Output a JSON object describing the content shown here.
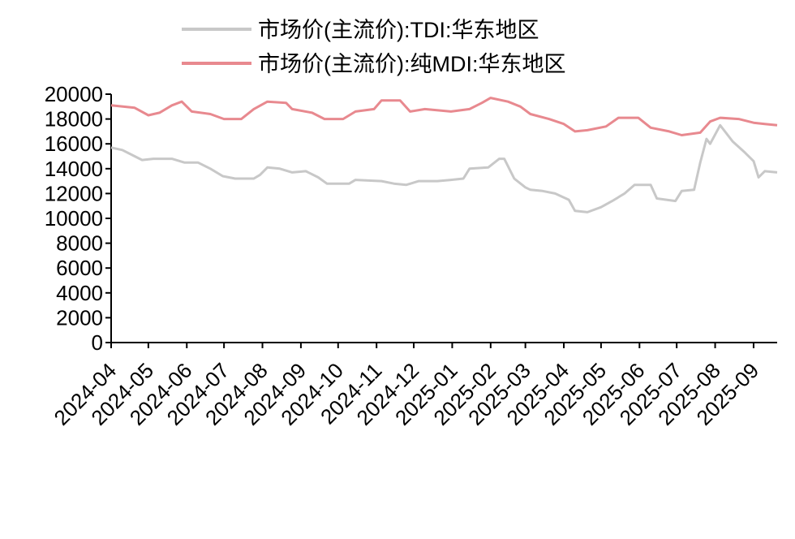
{
  "chart_data": {
    "type": "line",
    "title": "",
    "xlabel": "",
    "ylabel": "",
    "ylim": [
      0,
      20000
    ],
    "yticks": [
      0,
      2000,
      4000,
      6000,
      8000,
      10000,
      12000,
      14000,
      16000,
      18000,
      20000
    ],
    "x_tick_labels": [
      "2024-04",
      "2024-05",
      "2024-06",
      "2024-07",
      "2024-08",
      "2024-09",
      "2024-10",
      "2024-11",
      "2024-12",
      "2025-01",
      "2025-02",
      "2025-03",
      "2025-04",
      "2025-05",
      "2025-06",
      "2025-07",
      "2025-08",
      "2025-09"
    ],
    "grid": false,
    "legend_position": "top",
    "series": [
      {
        "name": "市场价(主流价):TDI:华东地区",
        "color": "#c8c8c8",
        "points": [
          [
            "2024-04-01",
            15700
          ],
          [
            "2024-04-10",
            15500
          ],
          [
            "2024-04-20",
            15000
          ],
          [
            "2024-04-26",
            14700
          ],
          [
            "2024-05-05",
            14800
          ],
          [
            "2024-05-20",
            14800
          ],
          [
            "2024-05-30",
            14500
          ],
          [
            "2024-06-10",
            14500
          ],
          [
            "2024-06-20",
            14000
          ],
          [
            "2024-06-30",
            13400
          ],
          [
            "2024-07-10",
            13200
          ],
          [
            "2024-07-25",
            13200
          ],
          [
            "2024-07-30",
            13500
          ],
          [
            "2024-08-05",
            14100
          ],
          [
            "2024-08-15",
            14000
          ],
          [
            "2024-08-25",
            13700
          ],
          [
            "2024-09-05",
            13800
          ],
          [
            "2024-09-15",
            13300
          ],
          [
            "2024-09-22",
            12800
          ],
          [
            "2024-10-10",
            12800
          ],
          [
            "2024-10-15",
            13100
          ],
          [
            "2024-11-05",
            13000
          ],
          [
            "2024-11-15",
            12800
          ],
          [
            "2024-11-25",
            12700
          ],
          [
            "2024-12-05",
            13000
          ],
          [
            "2024-12-20",
            13000
          ],
          [
            "2024-12-31",
            13100
          ],
          [
            "2025-01-10",
            13200
          ],
          [
            "2025-01-15",
            14000
          ],
          [
            "2025-01-30",
            14100
          ],
          [
            "2025-02-08",
            14800
          ],
          [
            "2025-02-12",
            14800
          ],
          [
            "2025-02-20",
            13200
          ],
          [
            "2025-03-01",
            12500
          ],
          [
            "2025-03-05",
            12300
          ],
          [
            "2025-03-15",
            12200
          ],
          [
            "2025-03-25",
            12000
          ],
          [
            "2025-04-05",
            11500
          ],
          [
            "2025-04-10",
            10600
          ],
          [
            "2025-04-20",
            10500
          ],
          [
            "2025-05-01",
            10900
          ],
          [
            "2025-05-10",
            11400
          ],
          [
            "2025-05-20",
            12000
          ],
          [
            "2025-05-28",
            12700
          ],
          [
            "2025-06-10",
            12700
          ],
          [
            "2025-06-15",
            11600
          ],
          [
            "2025-06-30",
            11400
          ],
          [
            "2025-07-05",
            12200
          ],
          [
            "2025-07-15",
            12300
          ],
          [
            "2025-07-20",
            14500
          ],
          [
            "2025-07-25",
            16400
          ],
          [
            "2025-07-28",
            16000
          ],
          [
            "2025-08-05",
            17500
          ],
          [
            "2025-08-15",
            16200
          ],
          [
            "2025-08-25",
            15300
          ],
          [
            "2025-09-01",
            14600
          ],
          [
            "2025-09-05",
            13300
          ],
          [
            "2025-09-10",
            13800
          ],
          [
            "2025-09-20",
            13700
          ]
        ]
      },
      {
        "name": "市场价(主流价):纯MDI:华东地区",
        "color": "#e8898f",
        "points": [
          [
            "2024-04-01",
            19100
          ],
          [
            "2024-04-20",
            18900
          ],
          [
            "2024-05-01",
            18300
          ],
          [
            "2024-05-10",
            18500
          ],
          [
            "2024-05-20",
            19100
          ],
          [
            "2024-05-28",
            19400
          ],
          [
            "2024-06-05",
            18600
          ],
          [
            "2024-06-20",
            18400
          ],
          [
            "2024-07-01",
            18000
          ],
          [
            "2024-07-15",
            18000
          ],
          [
            "2024-07-25",
            18800
          ],
          [
            "2024-08-05",
            19400
          ],
          [
            "2024-08-20",
            19300
          ],
          [
            "2024-08-25",
            18800
          ],
          [
            "2024-09-10",
            18500
          ],
          [
            "2024-09-20",
            18000
          ],
          [
            "2024-10-05",
            18000
          ],
          [
            "2024-10-15",
            18600
          ],
          [
            "2024-10-30",
            18800
          ],
          [
            "2024-11-05",
            19500
          ],
          [
            "2024-11-20",
            19500
          ],
          [
            "2024-11-28",
            18600
          ],
          [
            "2024-12-10",
            18800
          ],
          [
            "2024-12-31",
            18600
          ],
          [
            "2025-01-15",
            18800
          ],
          [
            "2025-01-25",
            19300
          ],
          [
            "2025-02-01",
            19700
          ],
          [
            "2025-02-15",
            19400
          ],
          [
            "2025-02-25",
            19000
          ],
          [
            "2025-03-05",
            18400
          ],
          [
            "2025-03-20",
            18000
          ],
          [
            "2025-04-01",
            17600
          ],
          [
            "2025-04-10",
            17000
          ],
          [
            "2025-04-20",
            17100
          ],
          [
            "2025-05-05",
            17400
          ],
          [
            "2025-05-15",
            18100
          ],
          [
            "2025-05-31",
            18100
          ],
          [
            "2025-06-10",
            17300
          ],
          [
            "2025-06-25",
            17000
          ],
          [
            "2025-07-05",
            16700
          ],
          [
            "2025-07-20",
            16900
          ],
          [
            "2025-07-28",
            17800
          ],
          [
            "2025-08-05",
            18100
          ],
          [
            "2025-08-20",
            18000
          ],
          [
            "2025-09-01",
            17700
          ],
          [
            "2025-09-10",
            17600
          ],
          [
            "2025-09-20",
            17500
          ]
        ]
      }
    ]
  }
}
